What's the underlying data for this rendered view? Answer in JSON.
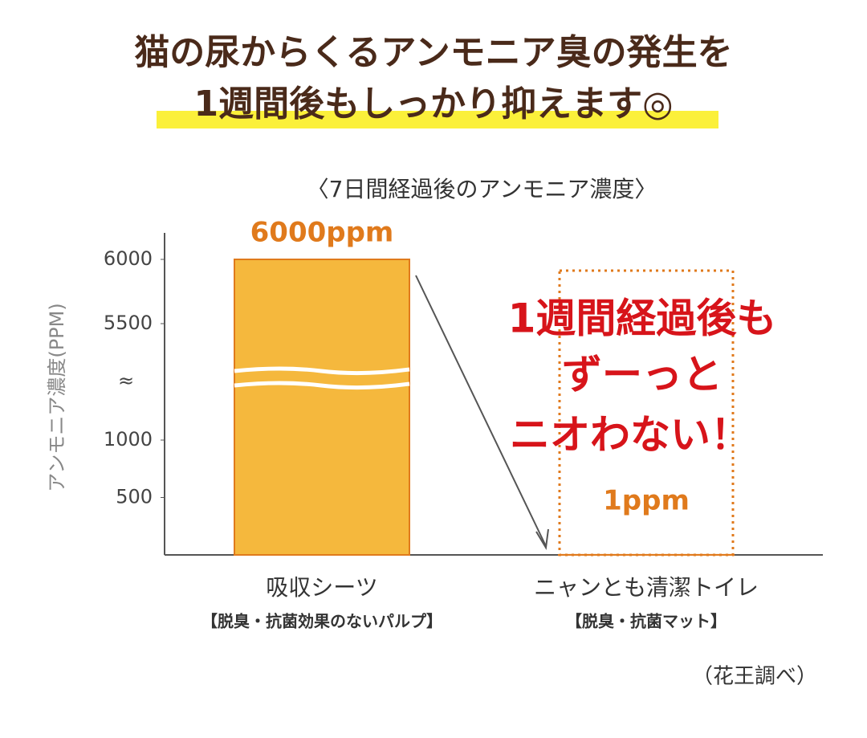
{
  "chart_data": {
    "type": "bar",
    "title_lines": [
      "猫の尿からくるアンモニア臭の発生を",
      "1週間後もしっかり抑えます◎"
    ],
    "subtitle": "〈7日間経過後のアンモニア濃度〉",
    "y_label": "アンモニア濃度(PPM)",
    "categories": [
      "吸収シーツ",
      "ニャンとも清潔トイレ"
    ],
    "category_notes": [
      "【脱臭・抗菌効果のないパルプ】",
      "【脱臭・抗菌マット】"
    ],
    "values": [
      6000,
      1
    ],
    "value_labels": [
      "6000ppm",
      "1ppm"
    ],
    "color": "#f5b83d",
    "edge_color": "#e07a1c",
    "ylim": [
      0,
      6000
    ],
    "yticks": [
      500,
      1000,
      5500,
      6000
    ],
    "ybreak": [
      1000,
      5500
    ],
    "ybreak_label": "≈",
    "annotation_lines": [
      "1週間経過後も",
      "ずーっと",
      "ニオわない！"
    ],
    "source": "（花王調べ）"
  }
}
